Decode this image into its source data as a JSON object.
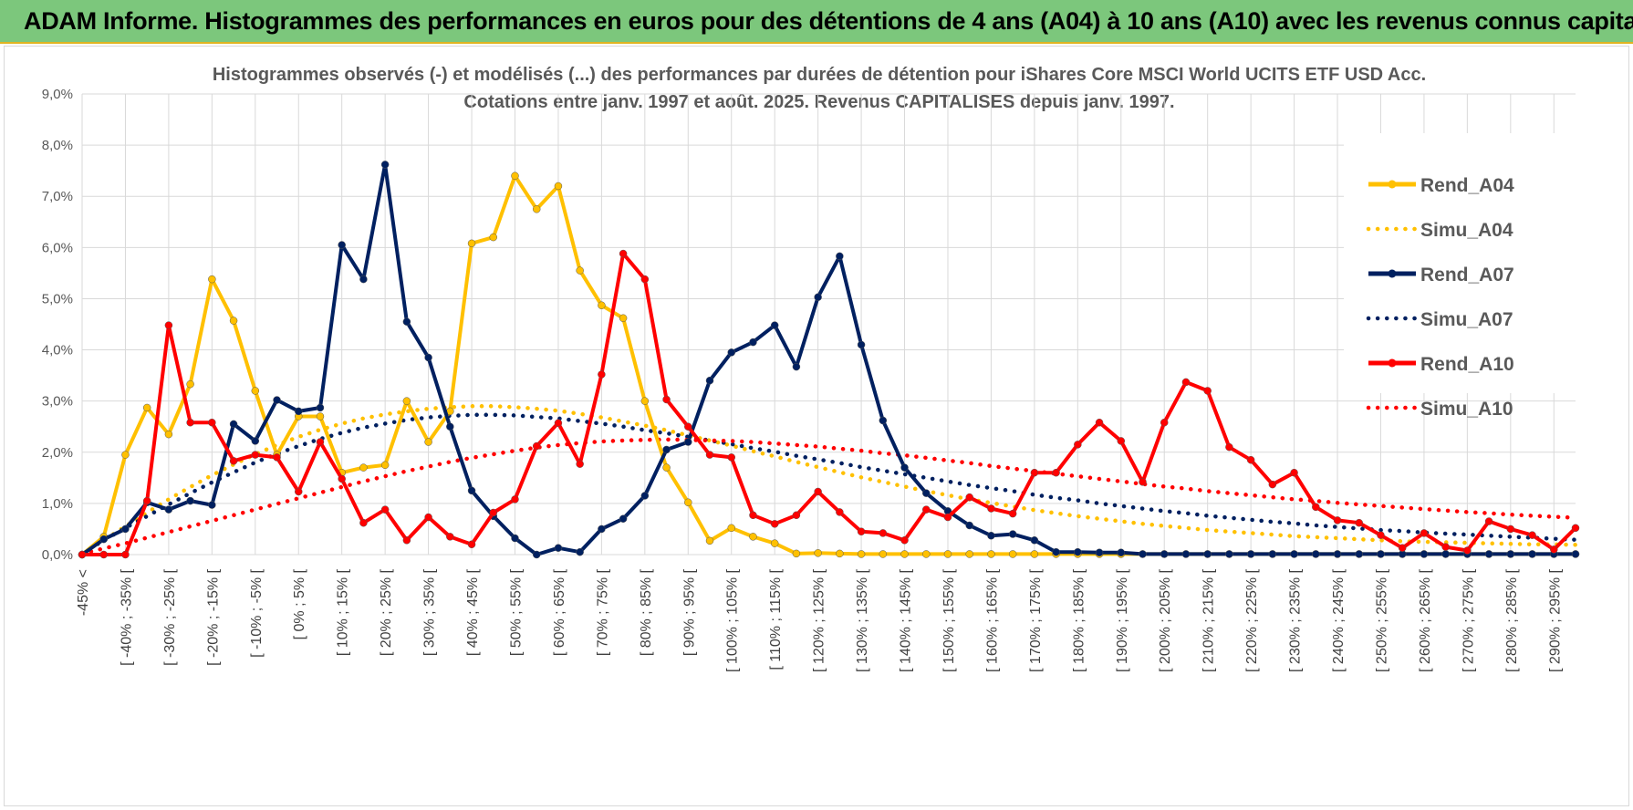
{
  "banner": {
    "title": "ADAM Informe. Histogrammes des performances en euros pour des détentions de 4 ans (A04) à 10 ans (A10) avec les revenus connus capitalisés",
    "background": "#7cc77c"
  },
  "chart_data": {
    "type": "line",
    "title": "Histogrammes observés (-) et modélisés (...) des performances par durées de détention pour iShares Core MSCI World UCITS ETF USD Acc.",
    "subtitle": "Cotations entre janv. 1997 et août. 2025. Revenus CAPITALISES depuis janv. 1997.",
    "xlabel": "",
    "ylabel": "",
    "ylim": [
      0,
      9
    ],
    "y_ticks": [
      "0,0%",
      "1,0%",
      "2,0%",
      "3,0%",
      "4,0%",
      "5,0%",
      "6,0%",
      "7,0%",
      "8,0%",
      "9,0%"
    ],
    "grid": true,
    "legend_position": "right",
    "x_ticks": [
      "-45% <",
      "[ -40% ; -35% [",
      "[ -30% ; -25% [",
      "[ -20% ; -15% [",
      "[ -10% ; -5% [",
      "[ 0% ; 5% [",
      "[ 10% ; 15% [",
      "[ 20% ; 25% [",
      "[ 30% ; 35% [",
      "[ 40% ; 45% [",
      "[ 50% ; 55% [",
      "[ 60% ; 65% [",
      "[ 70% ; 75% [",
      "[ 80% ; 85% [",
      "[ 90% ; 95% [",
      "[ 100% ; 105% [",
      "[ 110% ; 115% [",
      "[ 120% ; 125% [",
      "[ 130% ; 135% [",
      "[ 140% ; 145% [",
      "[ 150% ; 155% [",
      "[ 160% ; 165% [",
      "[ 170% ; 175% [",
      "[ 180% ; 185% [",
      "[ 190% ; 195% [",
      "[ 200% ; 205% [",
      "[ 210% ; 215% [",
      "[ 220% ; 225% [",
      "[ 230% ; 235% [",
      "[ 240% ; 245% [",
      "[ 250% ; 255% [",
      "[ 260% ; 265% [",
      "[ 270% ; 275% [",
      "[ 280% ; 285% [",
      "[ 290% ; 295% ["
    ],
    "categories_note": "70 bins from -45% < to 295%, ticks shown every other bin",
    "series": [
      {
        "name": "Rend_A04",
        "style": "solid",
        "color": "#ffc000",
        "values": [
          0.0,
          0.35,
          1.95,
          2.87,
          2.35,
          3.33,
          5.38,
          4.57,
          3.2,
          1.95,
          2.7,
          2.7,
          1.6,
          1.7,
          1.75,
          3.0,
          2.2,
          2.8,
          6.08,
          6.2,
          7.4,
          6.75,
          7.2,
          5.55,
          4.87,
          4.62,
          3.0,
          1.7,
          1.02,
          0.27,
          0.52,
          0.35,
          0.22,
          0.02,
          0.03,
          0.02,
          0.01,
          0.01,
          0.01,
          0.01,
          0.01,
          0.01,
          0.01,
          0.01,
          0.01,
          0.01,
          0.01,
          0.01,
          0.01,
          0.01,
          0.01,
          0.01,
          0.01,
          0.01,
          0.01,
          0.01,
          0.01,
          0.01,
          0.01,
          0.01,
          0.01,
          0.01,
          0.01,
          0.01,
          0.01,
          0.01,
          0.01,
          0.01,
          0.01,
          0.01
        ]
      },
      {
        "name": "Simu_A04",
        "style": "dotted",
        "color": "#ffc000",
        "values": [
          0.02,
          0.28,
          0.55,
          0.82,
          1.08,
          1.32,
          1.55,
          1.76,
          1.96,
          2.14,
          2.3,
          2.44,
          2.56,
          2.66,
          2.74,
          2.8,
          2.85,
          2.88,
          2.9,
          2.9,
          2.88,
          2.85,
          2.81,
          2.75,
          2.68,
          2.6,
          2.52,
          2.43,
          2.33,
          2.23,
          2.13,
          2.02,
          1.92,
          1.81,
          1.71,
          1.61,
          1.51,
          1.42,
          1.33,
          1.24,
          1.16,
          1.08,
          1.01,
          0.94,
          0.87,
          0.81,
          0.75,
          0.7,
          0.65,
          0.6,
          0.56,
          0.52,
          0.48,
          0.45,
          0.42,
          0.39,
          0.36,
          0.34,
          0.32,
          0.3,
          0.28,
          0.26,
          0.25,
          0.24,
          0.23,
          0.22,
          0.21,
          0.2,
          0.2,
          0.19
        ]
      },
      {
        "name": "Rend_A07",
        "style": "solid",
        "color": "#002060",
        "values": [
          0.0,
          0.3,
          0.5,
          1.02,
          0.88,
          1.05,
          0.97,
          2.55,
          2.22,
          3.02,
          2.8,
          2.87,
          6.05,
          5.38,
          7.62,
          4.55,
          3.85,
          2.5,
          1.25,
          0.75,
          0.32,
          0.0,
          0.13,
          0.05,
          0.5,
          0.7,
          1.15,
          2.05,
          2.2,
          3.4,
          3.95,
          4.15,
          4.48,
          3.67,
          5.03,
          5.83,
          4.1,
          2.62,
          1.7,
          1.2,
          0.85,
          0.57,
          0.37,
          0.4,
          0.28,
          0.05,
          0.05,
          0.04,
          0.04,
          0.01,
          0.01,
          0.01,
          0.01,
          0.01,
          0.01,
          0.01,
          0.01,
          0.01,
          0.01,
          0.01,
          0.01,
          0.01,
          0.01,
          0.01,
          0.01,
          0.01,
          0.01,
          0.01,
          0.01,
          0.01
        ]
      },
      {
        "name": "Simu_A07",
        "style": "dotted",
        "color": "#002060",
        "values": [
          0.02,
          0.28,
          0.52,
          0.75,
          0.98,
          1.2,
          1.41,
          1.61,
          1.8,
          1.97,
          2.12,
          2.26,
          2.38,
          2.48,
          2.56,
          2.63,
          2.68,
          2.71,
          2.73,
          2.73,
          2.72,
          2.69,
          2.66,
          2.61,
          2.56,
          2.5,
          2.43,
          2.37,
          2.3,
          2.23,
          2.16,
          2.08,
          2.01,
          1.93,
          1.86,
          1.79,
          1.71,
          1.64,
          1.57,
          1.5,
          1.43,
          1.36,
          1.3,
          1.24,
          1.17,
          1.11,
          1.06,
          1.0,
          0.95,
          0.9,
          0.85,
          0.81,
          0.76,
          0.72,
          0.68,
          0.64,
          0.61,
          0.57,
          0.54,
          0.51,
          0.48,
          0.46,
          0.43,
          0.41,
          0.39,
          0.37,
          0.35,
          0.33,
          0.31,
          0.29
        ]
      },
      {
        "name": "Rend_A10",
        "style": "solid",
        "color": "#ff0000",
        "values": [
          0.0,
          0.0,
          0.0,
          1.05,
          4.48,
          2.58,
          2.58,
          1.83,
          1.95,
          1.9,
          1.23,
          2.2,
          1.48,
          0.62,
          0.88,
          0.28,
          0.73,
          0.35,
          0.2,
          0.82,
          1.08,
          2.12,
          2.57,
          1.77,
          3.52,
          5.88,
          5.38,
          3.03,
          2.5,
          1.95,
          1.9,
          0.77,
          0.6,
          0.77,
          1.23,
          0.83,
          0.45,
          0.42,
          0.28,
          0.88,
          0.73,
          1.12,
          0.9,
          0.8,
          1.6,
          1.6,
          2.15,
          2.58,
          2.22,
          1.42,
          2.58,
          3.37,
          3.2,
          2.1,
          1.85,
          1.37,
          1.6,
          0.93,
          0.67,
          0.62,
          0.38,
          0.13,
          0.42,
          0.15,
          0.08,
          0.65,
          0.5,
          0.38,
          0.1,
          0.52
        ]
      },
      {
        "name": "Simu_A10",
        "style": "dotted",
        "color": "#ff0000",
        "values": [
          0.02,
          0.12,
          0.22,
          0.33,
          0.44,
          0.55,
          0.66,
          0.77,
          0.88,
          0.99,
          1.1,
          1.21,
          1.32,
          1.43,
          1.53,
          1.63,
          1.72,
          1.81,
          1.89,
          1.96,
          2.03,
          2.09,
          2.14,
          2.18,
          2.21,
          2.23,
          2.24,
          2.25,
          2.24,
          2.23,
          2.22,
          2.2,
          2.17,
          2.14,
          2.11,
          2.07,
          2.03,
          1.98,
          1.94,
          1.89,
          1.84,
          1.79,
          1.73,
          1.68,
          1.63,
          1.58,
          1.53,
          1.48,
          1.43,
          1.38,
          1.33,
          1.29,
          1.24,
          1.2,
          1.16,
          1.12,
          1.08,
          1.05,
          1.01,
          0.98,
          0.95,
          0.92,
          0.89,
          0.86,
          0.83,
          0.81,
          0.78,
          0.76,
          0.74,
          0.72
        ]
      }
    ]
  }
}
